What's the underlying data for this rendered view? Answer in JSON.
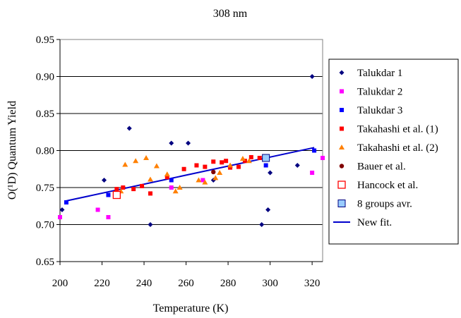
{
  "chart_data": {
    "type": "scatter",
    "title": "308 nm",
    "xlabel": "Temperature (K)",
    "ylabel": "O(¹D) Quantum Yield",
    "xlim": [
      200,
      325
    ],
    "ylim": [
      0.65,
      0.95
    ],
    "x_ticks": [
      "200",
      "220",
      "240",
      "260",
      "280",
      "300",
      "320"
    ],
    "x_tick_values": [
      200,
      220,
      240,
      260,
      280,
      300,
      320
    ],
    "y_ticks": [
      "0.65",
      "0.70",
      "0.75",
      "0.80",
      "0.85",
      "0.90",
      "0.95"
    ],
    "y_tick_values": [
      0.65,
      0.7,
      0.75,
      0.8,
      0.85,
      0.9,
      0.95
    ],
    "grid": "horizontal",
    "legend_position": "right",
    "series": [
      {
        "name": "Talukdar 1",
        "marker": "diamond",
        "color": "#000080",
        "points": [
          [
            201,
            0.72
          ],
          [
            221,
            0.76
          ],
          [
            233,
            0.83
          ],
          [
            243,
            0.7
          ],
          [
            253,
            0.81
          ],
          [
            261,
            0.81
          ],
          [
            273,
            0.76
          ],
          [
            296,
            0.7
          ],
          [
            299,
            0.72
          ],
          [
            300,
            0.77
          ],
          [
            313,
            0.78
          ],
          [
            320,
            0.9
          ]
        ]
      },
      {
        "name": "Talukdar 2",
        "marker": "square",
        "color": "#FF00FF",
        "points": [
          [
            200,
            0.71
          ],
          [
            218,
            0.72
          ],
          [
            223,
            0.71
          ],
          [
            253,
            0.75
          ],
          [
            268,
            0.76
          ],
          [
            320,
            0.77
          ],
          [
            325,
            0.79
          ]
        ]
      },
      {
        "name": "Talukdar 3",
        "marker": "square",
        "color": "#0000FF",
        "points": [
          [
            203,
            0.73
          ],
          [
            223,
            0.74
          ],
          [
            253,
            0.76
          ],
          [
            298,
            0.78
          ],
          [
            321,
            0.8
          ]
        ]
      },
      {
        "name": "Takahashi et al. (1)",
        "marker": "square",
        "color": "#FF0000",
        "points": [
          [
            227,
            0.748
          ],
          [
            230,
            0.75
          ],
          [
            235,
            0.748
          ],
          [
            239,
            0.752
          ],
          [
            243,
            0.742
          ],
          [
            251,
            0.764
          ],
          [
            259,
            0.775
          ],
          [
            265,
            0.78
          ],
          [
            269,
            0.778
          ],
          [
            273,
            0.785
          ],
          [
            277,
            0.784
          ],
          [
            279,
            0.786
          ],
          [
            281,
            0.777
          ],
          [
            285,
            0.778
          ],
          [
            288,
            0.786
          ],
          [
            291,
            0.791
          ],
          [
            295,
            0.79
          ]
        ]
      },
      {
        "name": "Takahashi et al. (2)",
        "marker": "triangle",
        "color": "#FF8000",
        "points": [
          [
            229,
            0.745
          ],
          [
            231,
            0.781
          ],
          [
            236,
            0.786
          ],
          [
            241,
            0.79
          ],
          [
            243,
            0.761
          ],
          [
            246,
            0.779
          ],
          [
            251,
            0.768
          ],
          [
            255,
            0.745
          ],
          [
            257,
            0.75
          ],
          [
            266,
            0.76
          ],
          [
            269,
            0.757
          ],
          [
            274,
            0.763
          ],
          [
            276,
            0.77
          ],
          [
            281,
            0.78
          ],
          [
            287,
            0.789
          ],
          [
            290,
            0.786
          ]
        ]
      },
      {
        "name": "Bauer et al.",
        "marker": "circle",
        "color": "#800000",
        "points": [
          [
            273,
            0.771
          ]
        ]
      },
      {
        "name": "Hancock et al.",
        "marker": "open-square",
        "color": "#FF0000",
        "points": [
          [
            227,
            0.74
          ]
        ]
      },
      {
        "name": "8 groups avr.",
        "marker": "big-square",
        "color": "#99CCFF",
        "points": [
          [
            298,
            0.79
          ]
        ]
      },
      {
        "name": "New fit.",
        "marker": "line",
        "color": "#0000CC",
        "points": [
          [
            203,
            0.732
          ],
          [
            321,
            0.804
          ]
        ]
      }
    ]
  }
}
